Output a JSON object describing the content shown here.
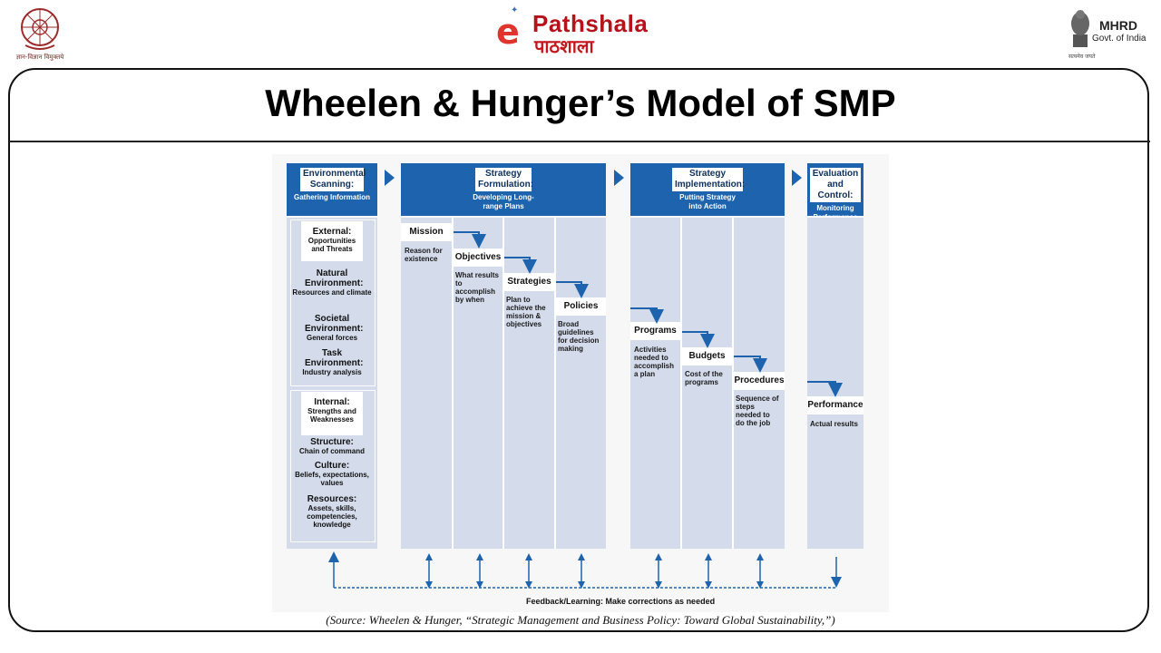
{
  "header": {
    "left_logo_caption": "ज्ञान-विज्ञान विमुक्तये",
    "center_logo_letter": "e",
    "center_logo_word": "Pathshala",
    "center_logo_hindi": "पाठशाला",
    "right_logo_title": "MHRD",
    "right_logo_subtitle": "Govt. of India",
    "right_logo_motto": "सत्यमेव जयते"
  },
  "slide": {
    "title": "Wheelen & Hunger’s Model of SMP",
    "source": "(Source: Wheelen & Hunger, “Strategic Management and Business Policy: Toward Global Sustainability,”)"
  },
  "diagram": {
    "phases": [
      {
        "label": "Environmental Scanning:",
        "sub": "Gathering Information"
      },
      {
        "label": "Strategy Formulation:",
        "sub": "Developing Long-range Plans"
      },
      {
        "label": "Strategy Implementation:",
        "sub": "Putting Strategy into Action"
      },
      {
        "label": "Evaluation and Control:",
        "sub": "Monitoring Performance"
      }
    ],
    "external": {
      "heading": "External:",
      "sub": "Opportunities and Threats",
      "items": [
        {
          "h": "Natural Environment:",
          "s": "Resources and climate"
        },
        {
          "h": "Societal Environment:",
          "s": "General forces"
        },
        {
          "h": "Task Environment:",
          "s": "Industry analysis"
        }
      ]
    },
    "internal": {
      "heading": "Internal:",
      "sub": "Strengths and Weaknesses",
      "items": [
        {
          "h": "Structure:",
          "s": "Chain of command"
        },
        {
          "h": "Culture:",
          "s": "Beliefs, expectations, values"
        },
        {
          "h": "Resources:",
          "s": "Assets, skills, competencies, knowledge"
        }
      ]
    },
    "steps": [
      {
        "label": "Mission",
        "desc": "Reason for existence"
      },
      {
        "label": "Objectives",
        "desc": "What results to accomplish by when"
      },
      {
        "label": "Strategies",
        "desc": "Plan to achieve the mission & objectives"
      },
      {
        "label": "Policies",
        "desc": "Broad guidelines for decision making"
      },
      {
        "label": "Programs",
        "desc": "Activities needed to accomplish a plan"
      },
      {
        "label": "Budgets",
        "desc": "Cost of the programs"
      },
      {
        "label": "Procedures",
        "desc": "Sequence of steps needed to do the job"
      },
      {
        "label": "Performance",
        "desc": "Actual results"
      }
    ],
    "feedback": "Feedback/Learning: Make corrections as needed"
  },
  "colors": {
    "phase_blue": "#1e63ad",
    "column_fill": "#d4dcec",
    "logo_red": "#b5121b"
  }
}
